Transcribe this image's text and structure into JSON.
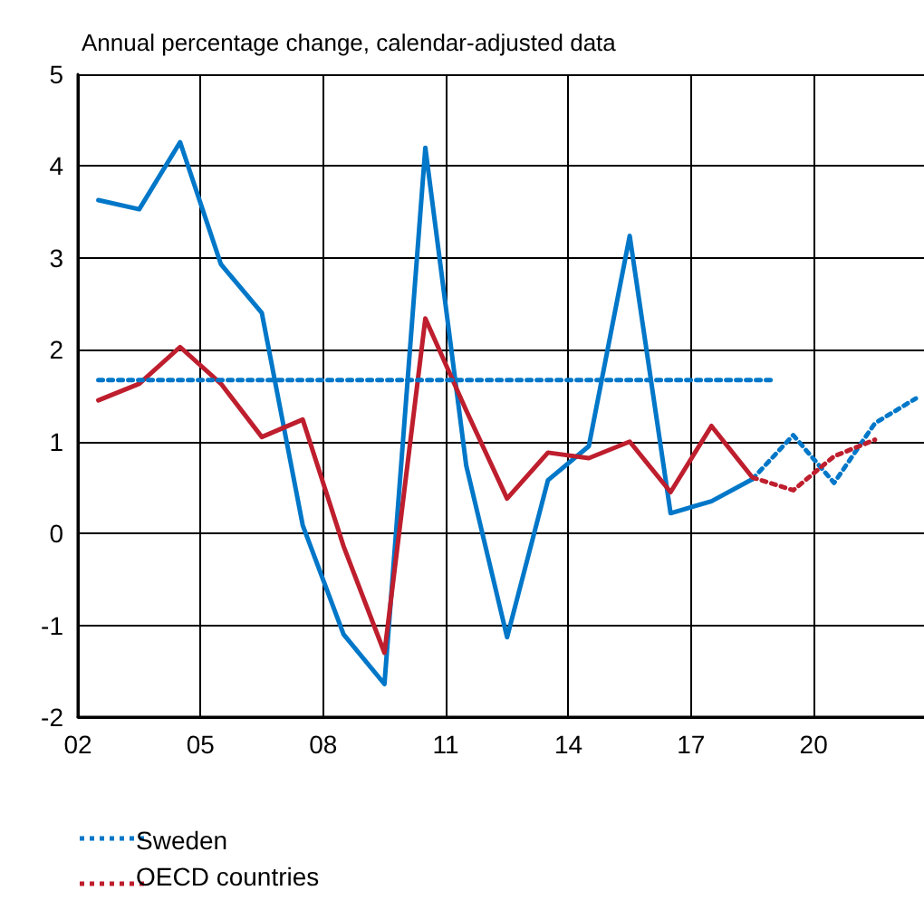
{
  "chart_data": {
    "type": "line",
    "subtitle": "Annual percentage change, calendar-adjusted data",
    "xlim": [
      2002,
      2022.7
    ],
    "xticks": [
      {
        "value": 2002,
        "label": "02"
      },
      {
        "value": 2005,
        "label": "05"
      },
      {
        "value": 2008,
        "label": "08"
      },
      {
        "value": 2011,
        "label": "11"
      },
      {
        "value": 2014,
        "label": "14"
      },
      {
        "value": 2017,
        "label": "17"
      },
      {
        "value": 2020,
        "label": "20"
      }
    ],
    "ylim": [
      -2,
      5
    ],
    "yticks": [
      -2,
      -1,
      0,
      1,
      2,
      3,
      4,
      5
    ],
    "grid": true,
    "legend": "bottom left",
    "marker": "none",
    "series": [
      {
        "color": "#0077c8",
        "line_style": "solid",
        "x": [
          2002.5,
          2003.5,
          2004.5,
          2005.5,
          2006.5,
          2007.5,
          2008.5,
          2009.5,
          2010.5,
          2011.5,
          2012.5,
          2013.5,
          2014.5,
          2015.5,
          2016.5,
          2017.5,
          2018.5
        ],
        "values": [
          3.63,
          3.53,
          4.26,
          2.93,
          2.4,
          0.09,
          -1.1,
          -1.64,
          4.2,
          0.74,
          -1.13,
          0.58,
          0.95,
          3.24,
          0.22,
          0.35,
          0.59
        ]
      },
      {
        "color": "#be1e2d",
        "line_style": "solid",
        "x": [
          2002.5,
          2003.5,
          2004.5,
          2005.5,
          2006.5,
          2007.5,
          2008.5,
          2009.5,
          2010.5,
          2011.5,
          2012.5,
          2013.5,
          2014.5,
          2015.5,
          2016.5,
          2017.5,
          2018.5
        ],
        "values": [
          1.45,
          1.63,
          2.03,
          1.63,
          1.05,
          1.24,
          -0.14,
          -1.3,
          2.34,
          1.34,
          0.38,
          0.88,
          0.82,
          1.0,
          0.45,
          1.17,
          0.61
        ]
      },
      {
        "name": "Sweden",
        "color": "#0077c8",
        "line_style": "dotted",
        "x": [
          2018.5,
          2019.5,
          2020.5,
          2021.5,
          2022.5
        ],
        "values": [
          0.59,
          1.07,
          0.55,
          1.2,
          1.47
        ]
      },
      {
        "name": "OECD countries",
        "color": "#be1e2d",
        "line_style": "dotted",
        "x": [
          2018.5,
          2019.5,
          2020.5,
          2021.5
        ],
        "values": [
          0.61,
          0.47,
          0.84,
          1.02
        ]
      },
      {
        "color": "#0077c8",
        "line_style": "dotted",
        "x": [
          2002.5,
          2019
        ],
        "values": [
          1.67,
          1.67
        ]
      }
    ]
  }
}
